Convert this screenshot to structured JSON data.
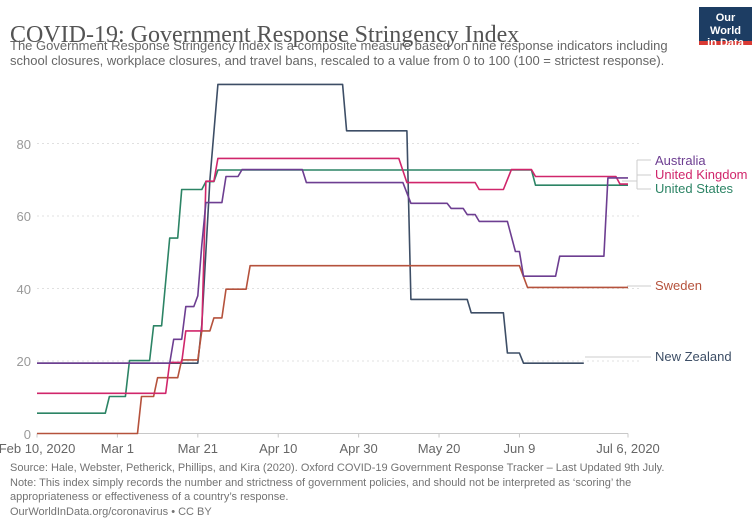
{
  "header": {
    "title": "COVID-19: Government Response Stringency Index",
    "subtitle_line1": "The Government Response Stringency Index is a composite measure based on nine response indicators including",
    "subtitle_line2": "school closures, workplace closures, and travel bans, rescaled to a value from 0 to 100 (100 = strictest response).",
    "logo_line1": "Our World",
    "logo_line2": "in Data",
    "logo_bg_color": "#1d3d63",
    "logo_stripe_color": "#d93a34"
  },
  "footer": {
    "source": "Source: Hale, Webster, Petherick, Phillips, and Kira (2020). Oxford COVID-19 Government Response Tracker – Last Updated 9th July.",
    "note_line1": "Note: This index simply records the number and strictness of government policies, and should not be interpreted as ‘scoring’ the",
    "note_line2": "appropriateness or effectiveness of a country’s response.",
    "attribution": "OurWorldInData.org/coronavirus • CC BY"
  },
  "chart_data": {
    "type": "line",
    "title": "COVID-19: Government Response Stringency Index",
    "x_axis": {
      "start_date": "Feb 10, 2020",
      "end_date": "Jul 6, 2020",
      "tick_labels": [
        "Feb 10, 2020",
        "Mar 1",
        "Mar 21",
        "Apr 10",
        "Apr 30",
        "May 20",
        "Jun 9",
        "Jul 6, 2020"
      ],
      "tick_days": [
        0,
        20,
        40,
        60,
        80,
        100,
        120,
        147
      ],
      "total_days": 147
    },
    "y_axis": {
      "ticks": [
        0,
        20,
        40,
        60,
        80
      ],
      "range": [
        0,
        100
      ],
      "gridlines": "dashed"
    },
    "legend_position": "right-end-labels",
    "style": {
      "gridline_color": "#e0e0e0",
      "axis_color": "#c8c8c8",
      "connector_color": "#cccccc",
      "x_tick_label_color": "#666666",
      "y_tick_label_color": "#999999"
    },
    "series": [
      {
        "name": "New Zealand",
        "color": "#3d4e66",
        "points": [
          [
            0,
            19.4
          ],
          [
            40,
            19.4
          ],
          [
            41,
            30
          ],
          [
            43,
            70
          ],
          [
            45,
            96.3
          ],
          [
            76,
            96.3
          ],
          [
            77,
            83.5
          ],
          [
            92,
            83.5
          ],
          [
            93,
            37
          ],
          [
            107,
            37
          ],
          [
            108,
            33.3
          ],
          [
            116,
            33.3
          ],
          [
            117,
            22.2
          ],
          [
            120,
            22.2
          ],
          [
            121,
            19.4
          ],
          [
            136,
            19.4
          ]
        ]
      },
      {
        "name": "Sweden",
        "color": "#b5523c",
        "points": [
          [
            0,
            0
          ],
          [
            25,
            0
          ],
          [
            26,
            10.2
          ],
          [
            29,
            10.2
          ],
          [
            30,
            15.4
          ],
          [
            35,
            15.4
          ],
          [
            36,
            20.3
          ],
          [
            40,
            20.3
          ],
          [
            41,
            28.3
          ],
          [
            43,
            28.3
          ],
          [
            44,
            31.9
          ],
          [
            46,
            31.9
          ],
          [
            47,
            39.8
          ],
          [
            52,
            39.8
          ],
          [
            53,
            46.3
          ],
          [
            120,
            46.3
          ],
          [
            122,
            40.3
          ],
          [
            147,
            40.3
          ]
        ]
      },
      {
        "name": "United States",
        "color": "#2c8465",
        "points": [
          [
            0,
            5.6
          ],
          [
            17,
            5.6
          ],
          [
            18,
            10.2
          ],
          [
            22,
            10.2
          ],
          [
            23,
            20.1
          ],
          [
            28,
            20.1
          ],
          [
            29,
            29.7
          ],
          [
            31,
            29.7
          ],
          [
            33,
            53.9
          ],
          [
            35,
            53.9
          ],
          [
            36,
            67.3
          ],
          [
            41,
            67.3
          ],
          [
            42,
            69.5
          ],
          [
            44,
            69.5
          ],
          [
            45,
            72.7
          ],
          [
            123,
            72.7
          ],
          [
            124,
            68.5
          ],
          [
            147,
            68.5
          ]
        ]
      },
      {
        "name": "United Kingdom",
        "color": "#d0266b",
        "points": [
          [
            0,
            11.1
          ],
          [
            32,
            11.1
          ],
          [
            33,
            19.6
          ],
          [
            36,
            19.6
          ],
          [
            37,
            28.3
          ],
          [
            41,
            28.3
          ],
          [
            42,
            69.6
          ],
          [
            44,
            69.6
          ],
          [
            45,
            75.9
          ],
          [
            90,
            75.9
          ],
          [
            92,
            69.2
          ],
          [
            109,
            69.2
          ],
          [
            110,
            67.3
          ],
          [
            116,
            67.3
          ],
          [
            118,
            72.8
          ],
          [
            123,
            72.8
          ],
          [
            124,
            70.9
          ],
          [
            144,
            70.9
          ],
          [
            145,
            68.8
          ],
          [
            147,
            68.8
          ]
        ]
      },
      {
        "name": "Australia",
        "color": "#6d3e91",
        "points": [
          [
            0,
            19.4
          ],
          [
            33,
            19.4
          ],
          [
            34,
            26
          ],
          [
            36,
            26
          ],
          [
            37,
            35
          ],
          [
            39,
            35
          ],
          [
            40,
            38
          ],
          [
            41,
            52
          ],
          [
            42,
            63.7
          ],
          [
            46,
            63.7
          ],
          [
            47,
            70.9
          ],
          [
            50,
            70.9
          ],
          [
            51,
            72.8
          ],
          [
            66,
            72.8
          ],
          [
            67,
            69.2
          ],
          [
            91,
            69.2
          ],
          [
            93,
            63.5
          ],
          [
            102,
            63.5
          ],
          [
            103,
            62.1
          ],
          [
            106,
            62.1
          ],
          [
            107,
            60.4
          ],
          [
            109,
            60.4
          ],
          [
            110,
            58.5
          ],
          [
            117,
            58.5
          ],
          [
            119,
            50.2
          ],
          [
            120,
            50.2
          ],
          [
            121,
            43.4
          ],
          [
            129,
            43.4
          ],
          [
            130,
            48.9
          ],
          [
            141,
            48.9
          ],
          [
            142,
            70.5
          ],
          [
            147,
            70.5
          ]
        ]
      }
    ]
  }
}
